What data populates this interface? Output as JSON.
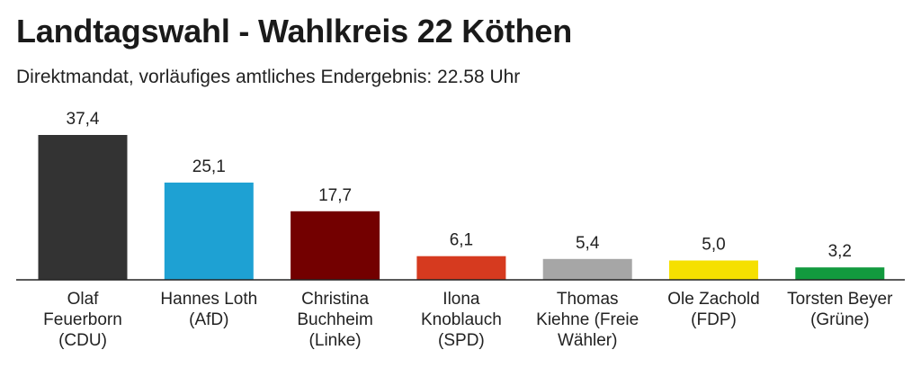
{
  "header": {
    "title": "Landtagswahl - Wahlkreis 22 Köthen",
    "subtitle": "Direktmandat, vorläufiges amtliches Endergebnis: 22.58 Uhr"
  },
  "chart_data": {
    "type": "bar",
    "title": "Landtagswahl - Wahlkreis 22 Köthen",
    "subtitle": "Direktmandat, vorläufiges amtliches Endergebnis: 22.58 Uhr",
    "xlabel": "",
    "ylabel": "",
    "ylim": [
      0,
      40
    ],
    "grid": false,
    "categories": [
      [
        "Olaf",
        "Feuerborn",
        "(CDU)"
      ],
      [
        "Hannes Loth",
        "(AfD)"
      ],
      [
        "Christina",
        "Buchheim",
        "(Linke)"
      ],
      [
        "Ilona",
        "Knoblauch",
        "(SPD)"
      ],
      [
        "Thomas",
        "Kiehne (Freie",
        "Wähler)"
      ],
      [
        "Ole Zachold",
        "(FDP)"
      ],
      [
        "Torsten Beyer",
        "(Grüne)"
      ]
    ],
    "values": [
      37.4,
      25.1,
      17.7,
      6.1,
      5.4,
      5.0,
      3.2
    ],
    "value_labels": [
      "37,4",
      "25,1",
      "17,7",
      "6,1",
      "5,4",
      "5,0",
      "3,2"
    ],
    "colors": [
      "#333333",
      "#1ea1d3",
      "#730000",
      "#d63a1f",
      "#a6a6a6",
      "#f5e000",
      "#129a3e"
    ]
  }
}
